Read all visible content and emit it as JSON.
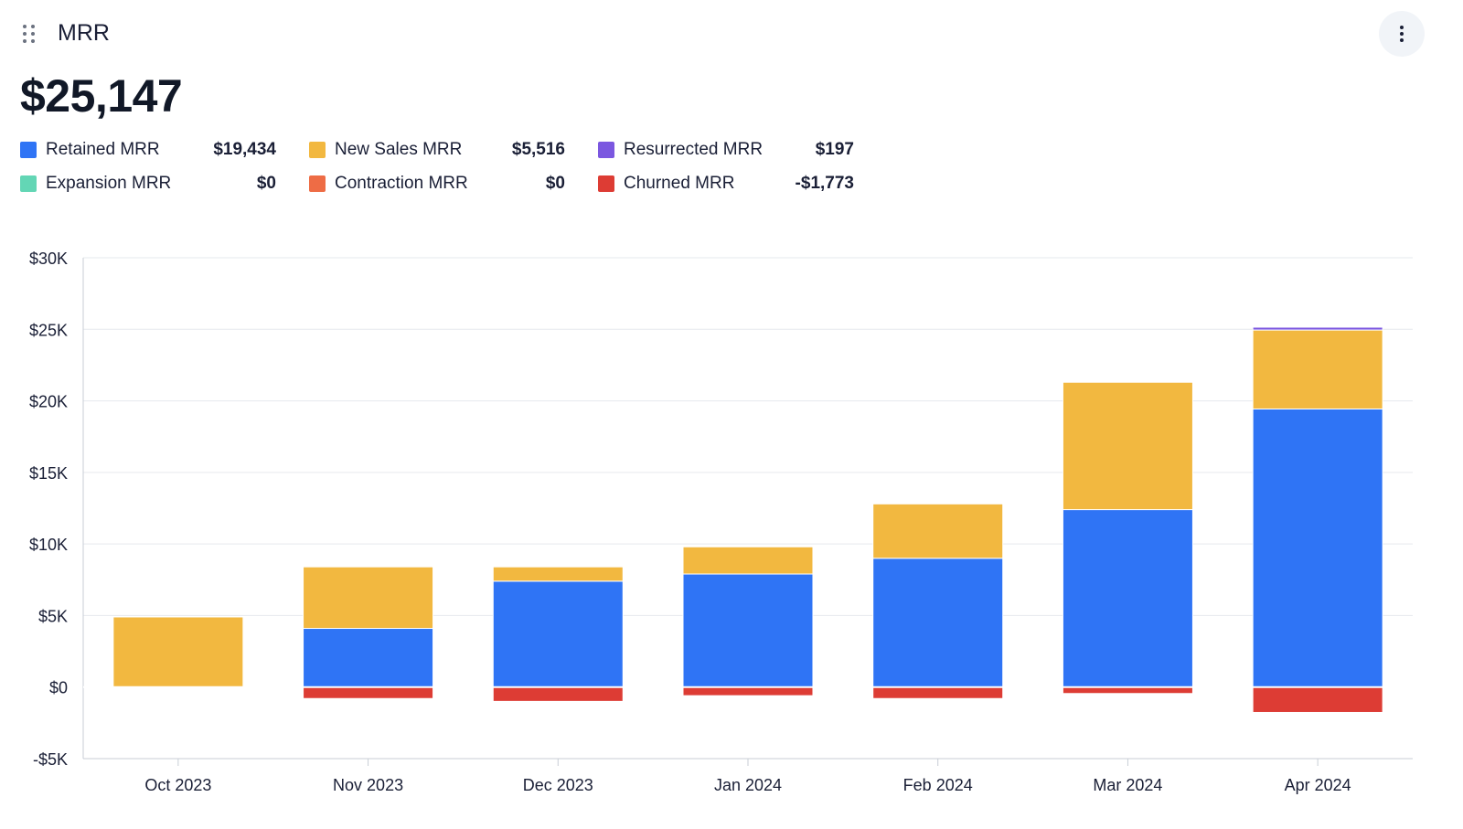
{
  "header": {
    "title": "MRR",
    "drag_handle_icon": "drag-handle-icon",
    "menu_icon": "vertical-dots-icon"
  },
  "summary": {
    "total": "$25,147"
  },
  "legend": [
    {
      "label": "Retained MRR",
      "value": "$19,434",
      "color": "#2f74f5"
    },
    {
      "label": "New Sales MRR",
      "value": "$5,516",
      "color": "#f2b840"
    },
    {
      "label": "Resurrected MRR",
      "value": "$197",
      "color": "#7b57e0"
    },
    {
      "label": "Expansion MRR",
      "value": "$0",
      "color": "#63d6b5"
    },
    {
      "label": "Contraction MRR",
      "value": "$0",
      "color": "#ee6c45"
    },
    {
      "label": "Churned MRR",
      "value": "-$1,773",
      "color": "#dd3c34"
    }
  ],
  "chart_data": {
    "type": "bar",
    "stacked": true,
    "categories": [
      "Oct 2023",
      "Nov 2023",
      "Dec 2023",
      "Jan 2024",
      "Feb 2024",
      "Mar 2024",
      "Apr 2024"
    ],
    "series": [
      {
        "name": "Retained MRR",
        "color": "#2f74f5",
        "values": [
          0,
          4100,
          7400,
          7900,
          9000,
          12400,
          19434
        ]
      },
      {
        "name": "New Sales MRR",
        "color": "#f2b840",
        "values": [
          4900,
          4300,
          1000,
          1900,
          3800,
          8900,
          5516
        ]
      },
      {
        "name": "Resurrected MRR",
        "color": "#7b57e0",
        "values": [
          0,
          0,
          0,
          0,
          0,
          0,
          197
        ]
      },
      {
        "name": "Expansion MRR",
        "color": "#63d6b5",
        "values": [
          0,
          0,
          0,
          0,
          0,
          0,
          0
        ]
      },
      {
        "name": "Contraction MRR",
        "color": "#ee6c45",
        "values": [
          0,
          0,
          0,
          0,
          0,
          0,
          0
        ]
      },
      {
        "name": "Churned MRR",
        "color": "#dd3c34",
        "values": [
          0,
          -800,
          -1000,
          -600,
          -800,
          -450,
          -1773
        ]
      }
    ],
    "yticks": [
      30000,
      25000,
      20000,
      15000,
      10000,
      5000,
      0,
      -5000
    ],
    "ytick_labels": [
      "$30K",
      "$25K",
      "$20K",
      "$15K",
      "$10K",
      "$5K",
      "$0",
      "-$5K"
    ],
    "ylim": [
      -5000,
      30000
    ],
    "grid": true,
    "xlabel": "",
    "ylabel": ""
  }
}
